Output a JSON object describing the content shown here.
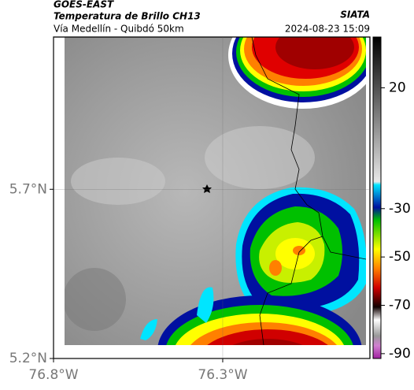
{
  "header": {
    "satellite": "GOES-EAST",
    "product": "Temperatura de Brillo CH13",
    "source": "SIATA",
    "route": "Vía Medellín - Quibdó 50km",
    "timestamp": "2024-08-23 15:09"
  },
  "map": {
    "xlim": [
      -76.8,
      -75.865
    ],
    "ylim": [
      5.2,
      6.15
    ],
    "xticks": [
      {
        "value": -76.8,
        "label": "76.8°W"
      },
      {
        "value": -76.3,
        "label": "76.3°W"
      }
    ],
    "yticks": [
      {
        "value": 5.2,
        "label": "5.2°N"
      },
      {
        "value": 5.7,
        "label": "5.7°N"
      }
    ],
    "grid": true
  },
  "colorbar": {
    "lim": [
      -92,
      41
    ],
    "ticks": [
      20,
      -30,
      -50,
      -70,
      -90
    ]
  }
}
